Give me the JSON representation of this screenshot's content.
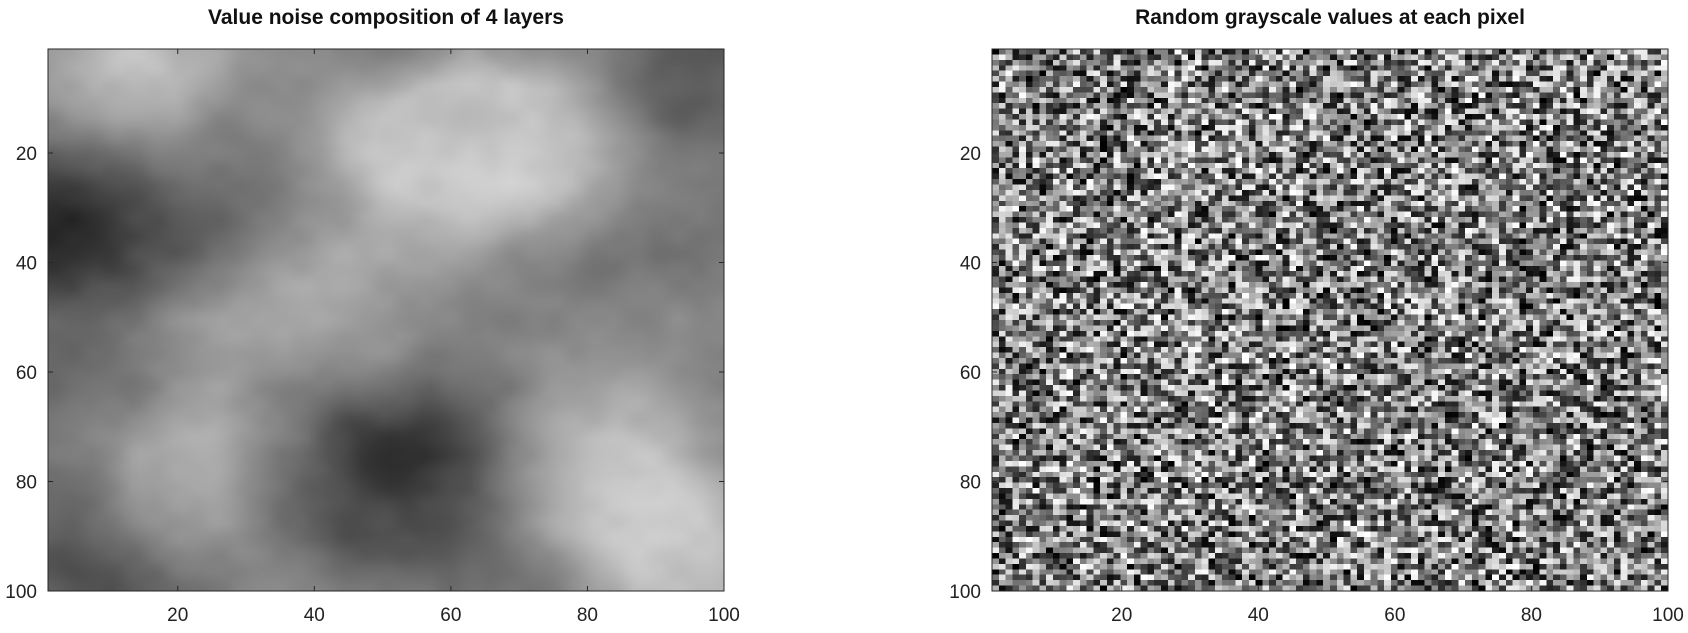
{
  "chart_data": [
    {
      "type": "heatmap",
      "title": "Value noise composition of 4 layers",
      "colormap": "gray",
      "grid": false,
      "xlabel": "",
      "ylabel": "",
      "xlim": [
        1,
        100
      ],
      "ylim": [
        1,
        100
      ],
      "y_axis_direction": "top-to-bottom",
      "rows": 100,
      "cols": 100,
      "x_ticks": [
        20,
        40,
        60,
        80,
        100
      ],
      "y_ticks": [
        20,
        40,
        60,
        80,
        100
      ],
      "value_range": [
        0,
        1
      ],
      "features": [
        {
          "x": 17,
          "y": 5,
          "intensity": 0.95
        },
        {
          "x": 22,
          "y": 80,
          "intensity": 1.0
        },
        {
          "x": 44,
          "y": 48,
          "intensity": 0.65
        },
        {
          "x": 70,
          "y": 18,
          "intensity": 0.92
        },
        {
          "x": 56,
          "y": 17,
          "intensity": 0.85
        },
        {
          "x": 82,
          "y": 78,
          "intensity": 0.88
        },
        {
          "x": 95,
          "y": 96,
          "intensity": 0.95
        },
        {
          "x": 60,
          "y": 80,
          "intensity": 0.0
        },
        {
          "x": 2,
          "y": 35,
          "intensity": 0.0
        },
        {
          "x": 40,
          "y": 82,
          "intensity": 0.12
        },
        {
          "x": 8,
          "y": 95,
          "intensity": 0.1
        },
        {
          "x": 95,
          "y": 8,
          "intensity": 0.15
        },
        {
          "x": 75,
          "y": 48,
          "intensity": 0.3
        }
      ]
    },
    {
      "type": "heatmap",
      "title": "Random grayscale values at each pixel",
      "colormap": "gray",
      "grid": false,
      "xlabel": "",
      "ylabel": "",
      "xlim": [
        1,
        100
      ],
      "ylim": [
        1,
        100
      ],
      "y_axis_direction": "top-to-bottom",
      "rows": 100,
      "cols": 100,
      "x_ticks": [
        20,
        40,
        60,
        80,
        100
      ],
      "y_ticks": [
        20,
        40,
        60,
        80,
        100
      ],
      "value_range": [
        0,
        1
      ],
      "distribution": "uniform random per pixel"
    }
  ]
}
